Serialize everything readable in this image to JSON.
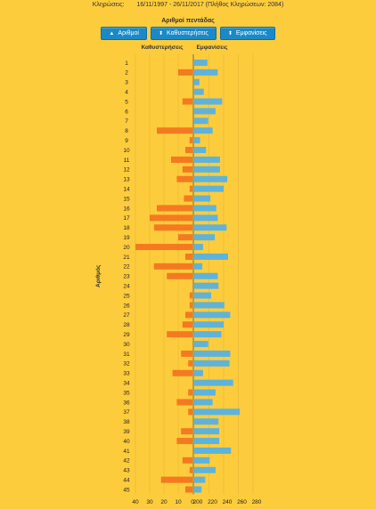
{
  "header": {
    "label": "Κληρώσεις:",
    "range": "16/11/1997 - 26/11/2017  (Πλήθος Κληρώσεων: 2084)"
  },
  "subtitle": "Αριθμοί πεντάδας",
  "buttons": [
    {
      "label": "Αριθμοί",
      "icon": "sort-asc-icon",
      "glyph": "▲"
    },
    {
      "label": "Καθυστερήσεις",
      "icon": "sort-icon",
      "glyph": "⬍"
    },
    {
      "label": "Εμφανίσεις",
      "icon": "sort-icon",
      "glyph": "⬍"
    }
  ],
  "colors": {
    "delay": "#F47920",
    "appear": "#5EB3DB",
    "axis": "#555555",
    "grid": "#E3B63A"
  },
  "chart_data": {
    "type": "bar",
    "orientation": "horizontal-diverging",
    "ylabel": "Αριθμός",
    "left_title": "Καθυστερήσεις",
    "right_title": "Εμφανίσεις",
    "categories": [
      "1",
      "2",
      "3",
      "4",
      "5",
      "6",
      "7",
      "8",
      "9",
      "10",
      "11",
      "12",
      "13",
      "14",
      "15",
      "16",
      "17",
      "18",
      "19",
      "20",
      "21",
      "22",
      "23",
      "24",
      "25",
      "26",
      "27",
      "28",
      "29",
      "30",
      "31",
      "32",
      "33",
      "34",
      "35",
      "36",
      "37",
      "38",
      "39",
      "40",
      "41",
      "42",
      "43",
      "44",
      "45"
    ],
    "series": [
      {
        "name": "Καθυστερήσεις",
        "side": "left",
        "ticks": [
          "40",
          "30",
          "20",
          "10",
          "0"
        ],
        "xlim": [
          0,
          40
        ],
        "values": [
          0,
          10,
          0,
          0,
          7,
          0,
          0,
          25,
          2,
          5,
          15,
          7,
          11,
          2,
          6,
          25,
          30,
          27,
          10,
          40,
          5,
          27,
          18,
          0,
          2,
          2,
          5,
          7,
          18,
          0,
          8,
          3,
          14,
          0,
          3,
          11,
          3,
          0,
          8,
          11,
          0,
          7,
          2,
          22,
          5
        ]
      },
      {
        "name": "Εμφανίσεις",
        "side": "right",
        "ticks": [
          "200",
          "220",
          "240",
          "260",
          "280"
        ],
        "xlim": [
          200,
          280
        ],
        "values": [
          218,
          232,
          207,
          213,
          238,
          229,
          219,
          225,
          208,
          216,
          235,
          235,
          245,
          240,
          222,
          230,
          232,
          244,
          228,
          212,
          246,
          211,
          232,
          233,
          223,
          241,
          249,
          240,
          237,
          219,
          249,
          248,
          212,
          253,
          229,
          225,
          262,
          233,
          234,
          234,
          250,
          221,
          229,
          215,
          210
        ]
      }
    ]
  }
}
